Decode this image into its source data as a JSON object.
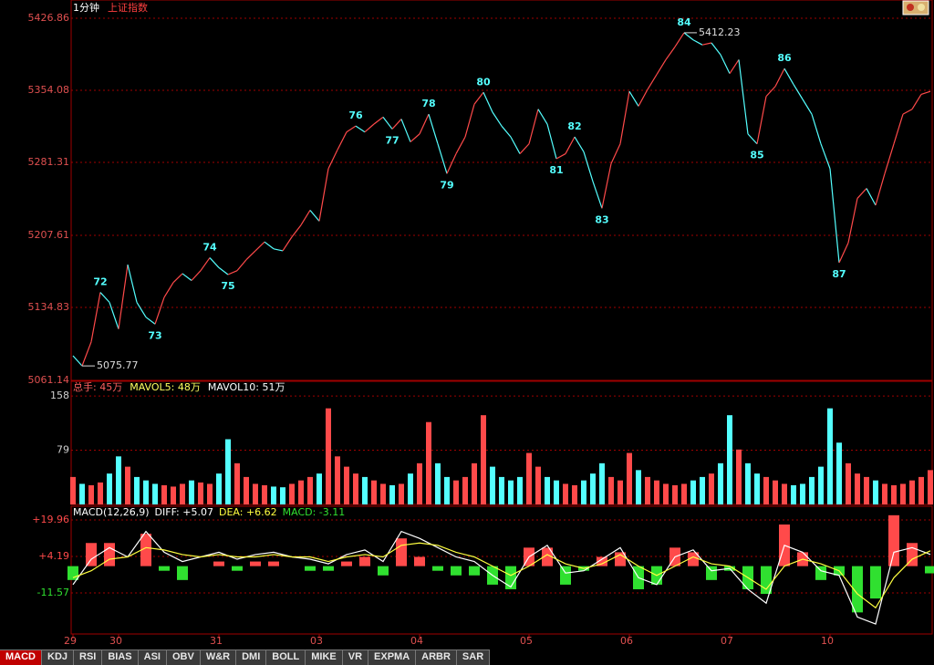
{
  "header": {
    "period": "1分钟",
    "index": "上证指数"
  },
  "tabs": [
    "MACD",
    "KDJ",
    "RSI",
    "BIAS",
    "ASI",
    "OBV",
    "W&R",
    "DMI",
    "BOLL",
    "MIKE",
    "VR",
    "EXPMA",
    "ARBR",
    "SAR"
  ],
  "active_tab": 0,
  "chart_data": [
    {
      "type": "line",
      "values": [
        5086,
        5075.77,
        5100,
        5150,
        5140,
        5113,
        5178,
        5140,
        5125,
        5118,
        5145,
        5160,
        5169,
        5162,
        5172,
        5185,
        5175,
        5168,
        5172,
        5183,
        5192,
        5201,
        5194,
        5192,
        5206,
        5218,
        5233,
        5222,
        5275,
        5294,
        5312,
        5318,
        5312,
        5320,
        5327,
        5315,
        5325,
        5302,
        5310,
        5330,
        5300,
        5270,
        5290,
        5307,
        5340,
        5352,
        5332,
        5318,
        5307,
        5290,
        5300,
        5335,
        5320,
        5285,
        5290,
        5307,
        5292,
        5262,
        5235,
        5280,
        5300,
        5353,
        5338,
        5355,
        5370,
        5385,
        5398,
        5412.23,
        5405,
        5400,
        5402,
        5390,
        5371,
        5385,
        5310,
        5300,
        5348,
        5358,
        5376,
        5360,
        5345,
        5330,
        5300,
        5275,
        5180,
        5200,
        5245,
        5255,
        5238,
        5270,
        5300,
        5330,
        5335,
        5350,
        5353
      ],
      "xlim": [
        0,
        94
      ],
      "ylim": [
        5061.14,
        5445.3
      ],
      "yticks": [
        5061.14,
        5134.83,
        5207.61,
        5281.31,
        5354.08,
        5426.86
      ],
      "xticks": [
        {
          "value": 0,
          "label": "29"
        },
        {
          "value": 5,
          "label": "30"
        },
        {
          "value": 16,
          "label": "31"
        },
        {
          "value": 27,
          "label": "03"
        },
        {
          "value": 38,
          "label": "04"
        },
        {
          "value": 50,
          "label": "05"
        },
        {
          "value": 61,
          "label": "06"
        },
        {
          "value": 72,
          "label": "07"
        },
        {
          "value": 83,
          "label": "10"
        }
      ],
      "grid": true,
      "up_color": "#ff4a4a",
      "down_color": "#54ffff",
      "tick_color": "#e05050",
      "wave_labels": [
        {
          "text": "72",
          "at": 3
        },
        {
          "text": "73",
          "at": 9
        },
        {
          "text": "74",
          "at": 15
        },
        {
          "text": "75",
          "at": 17
        },
        {
          "text": "76",
          "at": 31
        },
        {
          "text": "77",
          "at": 35
        },
        {
          "text": "78",
          "at": 39
        },
        {
          "text": "79",
          "at": 41
        },
        {
          "text": "80",
          "at": 45
        },
        {
          "text": "81",
          "at": 53
        },
        {
          "text": "82",
          "at": 55
        },
        {
          "text": "83",
          "at": 58
        },
        {
          "text": "84",
          "at": 67
        },
        {
          "text": "85",
          "at": 75
        },
        {
          "text": "86",
          "at": 78
        },
        {
          "text": "87",
          "at": 84
        }
      ],
      "extremes": [
        {
          "value": 5412.23,
          "at": 67
        },
        {
          "value": 5075.77,
          "at": 1
        }
      ]
    },
    {
      "type": "bar",
      "legend": [
        {
          "label": "总手: 45万",
          "color": "#ff6060"
        },
        {
          "label": "MAVOL5: 48万",
          "color": "#ffff60"
        },
        {
          "label": "MAVOL10: 51万",
          "color": "#ffffff"
        }
      ],
      "values": [
        40,
        30,
        28,
        32,
        45,
        70,
        55,
        40,
        35,
        30,
        28,
        26,
        30,
        35,
        32,
        30,
        45,
        95,
        60,
        40,
        30,
        28,
        26,
        25,
        30,
        35,
        40,
        45,
        140,
        70,
        55,
        45,
        40,
        35,
        30,
        28,
        30,
        45,
        60,
        120,
        60,
        40,
        35,
        40,
        60,
        130,
        55,
        40,
        35,
        40,
        75,
        55,
        40,
        35,
        30,
        28,
        35,
        45,
        60,
        40,
        35,
        75,
        50,
        40,
        35,
        30,
        28,
        30,
        35,
        40,
        45,
        60,
        130,
        80,
        60,
        45,
        40,
        35,
        30,
        28,
        30,
        40,
        55,
        140,
        90,
        60,
        45,
        40,
        35,
        30,
        28,
        30,
        35,
        40,
        50
      ],
      "xlim": [
        0,
        94
      ],
      "ylim": [
        0,
        179.4
      ],
      "yticks": [
        79,
        158
      ],
      "grid": true,
      "up_color": "#ff4a4a",
      "down_color": "#54ffff",
      "tick_color": "#d0d0d0"
    },
    {
      "type": "macd",
      "title": "MACD(12,26,9)",
      "series": [
        {
          "label": "DIFF: +5.07",
          "color": "#ffffff",
          "values": [
            -8,
            3,
            8,
            4,
            15,
            6,
            2,
            4,
            6,
            3,
            5,
            6,
            4,
            3,
            1,
            5,
            7,
            2,
            15,
            12,
            8,
            4,
            2,
            -4,
            -9,
            4,
            9,
            -3,
            -2,
            3,
            8,
            -5,
            -8,
            4,
            7,
            -2,
            -1,
            -10,
            -16,
            9,
            6,
            -2,
            -4,
            -22,
            -25,
            6,
            8,
            5.07
          ]
        },
        {
          "label": "DEA: +6.62",
          "color": "#ffff40",
          "values": [
            -5,
            -2,
            3,
            4,
            8,
            7,
            5,
            4,
            5,
            4,
            4,
            5,
            4,
            4,
            2,
            4,
            5,
            4,
            9,
            10,
            9,
            6,
            4,
            0,
            -4,
            0,
            5,
            1,
            -1,
            1,
            5,
            0,
            -4,
            0,
            4,
            1,
            0,
            -5,
            -10,
            0,
            3,
            1,
            -2,
            -12,
            -18,
            -5,
            3,
            6.62
          ]
        }
      ],
      "histogram": {
        "label": "MACD: -3.11",
        "values": [
          -6,
          10,
          10,
          0,
          14,
          -2,
          -6,
          0,
          2,
          -2,
          2,
          2,
          0,
          -2,
          -2,
          2,
          4,
          -4,
          12,
          4,
          -2,
          -4,
          -4,
          -8,
          -10,
          8,
          8,
          -8,
          -2,
          4,
          6,
          -10,
          -8,
          8,
          6,
          -6,
          -2,
          -10,
          -12,
          18,
          6,
          -6,
          -4,
          -20,
          -14,
          22,
          10,
          -3.11
        ]
      },
      "xlim": [
        0,
        47
      ],
      "ylim": [
        -29.33,
        25.88
      ],
      "yticks": [
        {
          "value": 19.96,
          "label": "+19.96"
        },
        {
          "value": 4.19,
          "label": "+4.19"
        },
        -11.57
      ],
      "grid": true,
      "up_color": "#ff4a4a",
      "down_color": "#30e030"
    }
  ]
}
